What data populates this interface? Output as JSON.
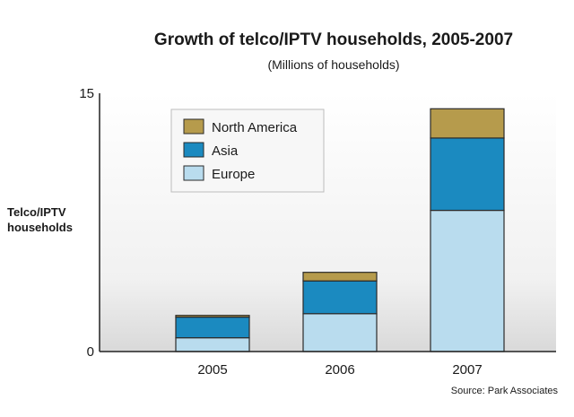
{
  "chart_data": {
    "type": "bar",
    "stacked": true,
    "title": "Growth of telco/IPTV households, 2005-2007",
    "subtitle": "(Millions of households)",
    "ylabel": "Telco/IPTV households",
    "xlabel": "",
    "categories": [
      "2005",
      "2006",
      "2007"
    ],
    "ylim": [
      0,
      15
    ],
    "yticks": [
      "0",
      "15"
    ],
    "series": [
      {
        "name": "Europe",
        "values": [
          0.8,
          2.2,
          8.2
        ],
        "color": "#b9dcee"
      },
      {
        "name": "Asia",
        "values": [
          1.2,
          1.9,
          4.2
        ],
        "color": "#1b8ac0"
      },
      {
        "name": "North America",
        "values": [
          0.1,
          0.5,
          1.7
        ],
        "color": "#b69b4c"
      }
    ],
    "legend_order": [
      "North America",
      "Asia",
      "Europe"
    ],
    "legend_position": "top-left",
    "grid": false,
    "source": "Source: Park Associates"
  }
}
